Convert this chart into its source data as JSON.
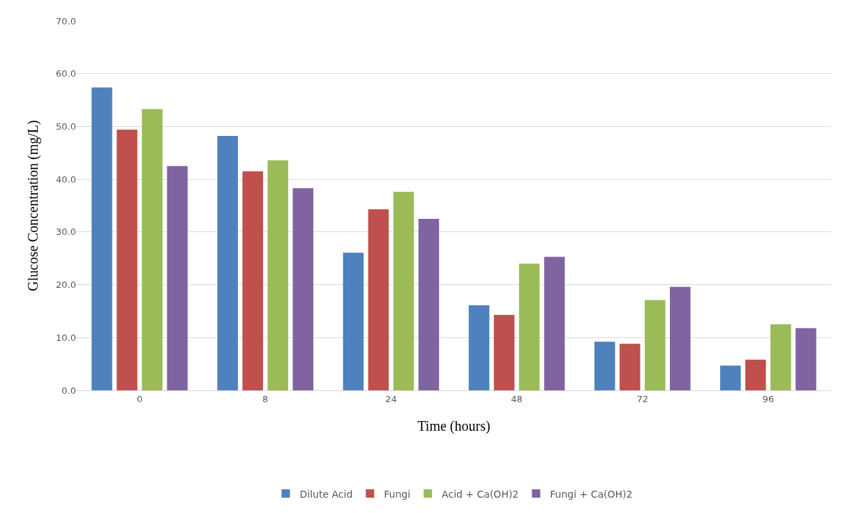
{
  "chart_data": {
    "type": "bar",
    "xlabel": "Time (hours)",
    "ylabel": "Glucose Concentration (mg/L)",
    "categories": [
      "0",
      "8",
      "24",
      "48",
      "72",
      "96"
    ],
    "series": [
      {
        "name": "Dilute Acid",
        "color": "#4f81bd",
        "values": [
          57.4,
          48.2,
          26.1,
          16.1,
          9.2,
          4.7
        ]
      },
      {
        "name": "Fungi",
        "color": "#c0504d",
        "values": [
          49.4,
          41.5,
          34.3,
          14.3,
          8.8,
          5.8
        ]
      },
      {
        "name": "Acid + Ca(OH)2",
        "color": "#9bbb59",
        "values": [
          53.3,
          43.6,
          37.6,
          24.0,
          17.1,
          12.5
        ]
      },
      {
        "name": "Fungi + Ca(OH)2",
        "color": "#8064a2",
        "values": [
          42.5,
          38.3,
          32.5,
          25.3,
          19.6,
          11.8
        ]
      }
    ],
    "ylim": [
      0,
      70
    ],
    "yticks": [
      {
        "value": 0,
        "label": "0.0"
      },
      {
        "value": 10,
        "label": "10.0"
      },
      {
        "value": 20,
        "label": "20.0"
      },
      {
        "value": 30,
        "label": "30.0"
      },
      {
        "value": 40,
        "label": "40.0"
      },
      {
        "value": 50,
        "label": "50.0"
      },
      {
        "value": 60,
        "label": "60.0"
      },
      {
        "value": 70,
        "label": "70.0"
      }
    ],
    "grid": "y",
    "legend": "bottom"
  }
}
